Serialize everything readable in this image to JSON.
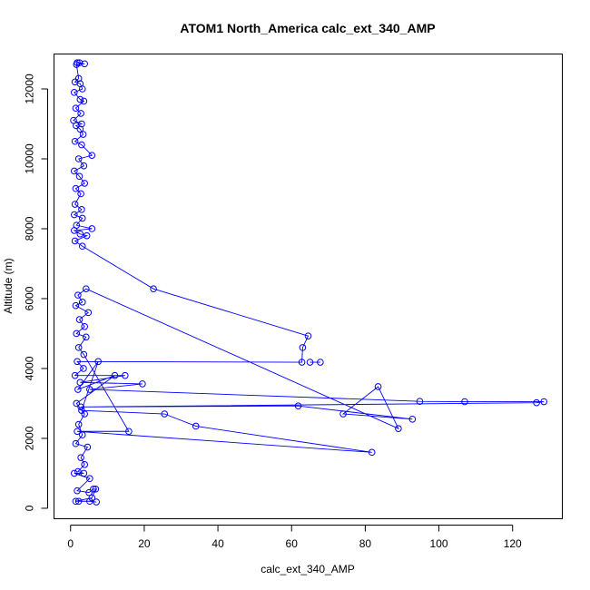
{
  "chart_data": {
    "type": "line",
    "title": "ATOM1 North_America calc_ext_340_AMP",
    "xlabel": "calc_ext_340_AMP",
    "ylabel": "Altitude (m)",
    "xlim": [
      -4.5,
      133.5
    ],
    "ylim": [
      -300,
      13000
    ],
    "xticks": [
      0,
      20,
      40,
      60,
      80,
      100,
      120
    ],
    "yticks": [
      0,
      2000,
      4000,
      6000,
      8000,
      10000,
      12000
    ],
    "color": "#0000ff",
    "markers": "open-circle",
    "series": [
      {
        "values": [
          [
            1.8,
            12750
          ],
          [
            2.4,
            12750
          ],
          [
            3.8,
            12720
          ],
          [
            1.6,
            12700
          ],
          [
            2.2,
            12300
          ],
          [
            1.2,
            12200
          ],
          [
            2.6,
            12150
          ],
          [
            3.2,
            12000
          ],
          [
            1.0,
            11900
          ],
          [
            2.6,
            11700
          ],
          [
            3.6,
            11650
          ],
          [
            1.4,
            11450
          ],
          [
            2.8,
            11300
          ],
          [
            0.8,
            11100
          ],
          [
            3.0,
            11000
          ],
          [
            1.5,
            10950
          ],
          [
            2.6,
            10850
          ],
          [
            3.4,
            10700
          ],
          [
            1.2,
            10500
          ],
          [
            3.0,
            10400
          ],
          [
            5.8,
            10100
          ],
          [
            2.2,
            10000
          ],
          [
            3.6,
            9800
          ],
          [
            1.0,
            9650
          ],
          [
            2.4,
            9500
          ],
          [
            3.8,
            9300
          ],
          [
            1.4,
            9150
          ],
          [
            2.8,
            9000
          ],
          [
            1.2,
            8700
          ],
          [
            3.0,
            8550
          ],
          [
            1.0,
            8400
          ],
          [
            3.2,
            8300
          ],
          [
            1.6,
            8100
          ],
          [
            5.8,
            8000
          ],
          [
            1.0,
            7950
          ],
          [
            2.6,
            7850
          ],
          [
            4.4,
            7800
          ],
          [
            1.2,
            7650
          ],
          [
            3.2,
            7500
          ],
          [
            22.5,
            6280
          ],
          [
            64.5,
            4930
          ],
          [
            63.0,
            4600
          ],
          [
            62.8,
            4180
          ],
          [
            1.8,
            4200
          ],
          [
            3.5,
            4000
          ],
          [
            1.2,
            3800
          ],
          [
            14.8,
            3800
          ],
          [
            2.6,
            3600
          ],
          [
            19.5,
            3560
          ],
          [
            5.2,
            3400
          ],
          [
            94.8,
            3060
          ],
          [
            107.0,
            3050
          ],
          [
            128.5,
            3050
          ],
          [
            126.5,
            3020
          ],
          [
            2.8,
            2900
          ],
          [
            61.8,
            2930
          ],
          [
            92.8,
            2550
          ],
          [
            74.0,
            2700
          ],
          [
            83.5,
            3480
          ],
          [
            89.0,
            2280
          ],
          [
            4.2,
            6280
          ],
          [
            2.0,
            6100
          ],
          [
            3.2,
            5900
          ],
          [
            1.4,
            5800
          ],
          [
            4.8,
            5600
          ],
          [
            2.4,
            5400
          ],
          [
            3.8,
            5200
          ],
          [
            1.6,
            5000
          ],
          [
            4.2,
            4900
          ],
          [
            2.2,
            4600
          ],
          [
            3.6,
            4400
          ],
          [
            15.8,
            2200
          ],
          [
            1.8,
            2200
          ],
          [
            81.8,
            1600
          ],
          [
            34.0,
            2350
          ],
          [
            25.5,
            2700
          ],
          [
            3.0,
            2800
          ],
          [
            7.5,
            4200
          ],
          [
            2.0,
            3400
          ],
          [
            12.0,
            3800
          ],
          [
            1.6,
            3000
          ],
          [
            3.8,
            2700
          ],
          [
            2.2,
            2400
          ],
          [
            3.2,
            2100
          ],
          [
            1.4,
            1850
          ],
          [
            4.6,
            1750
          ],
          [
            2.8,
            1450
          ],
          [
            3.8,
            1250
          ],
          [
            2.0,
            1050
          ],
          [
            3.6,
            1000
          ],
          [
            1.0,
            1000
          ],
          [
            5.2,
            850
          ],
          [
            1.8,
            500
          ],
          [
            5.0,
            450
          ],
          [
            6.2,
            550
          ],
          [
            6.8,
            550
          ],
          [
            5.8,
            300
          ],
          [
            1.4,
            200
          ],
          [
            2.2,
            200
          ],
          [
            5.2,
            200
          ],
          [
            7.0,
            180
          ]
        ]
      },
      {
        "values": [
          [
            67.8,
            4180
          ],
          [
            65.0,
            4180
          ]
        ]
      }
    ]
  }
}
